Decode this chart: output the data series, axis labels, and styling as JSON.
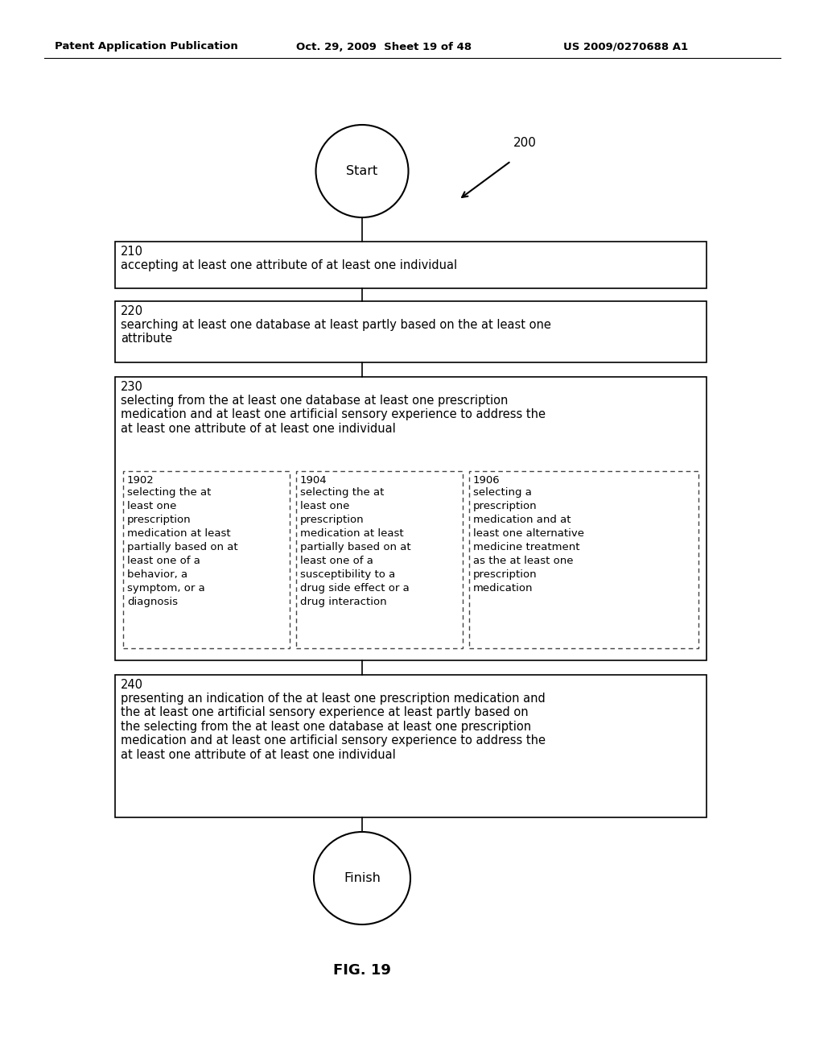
{
  "header_left": "Patent Application Publication",
  "header_mid": "Oct. 29, 2009  Sheet 19 of 48",
  "header_right": "US 2009/0270688 A1",
  "fig_label": "FIG. 19",
  "diagram_label": "200",
  "bg_color": "#ffffff",
  "text_color": "#000000",
  "box_edge_color": "#000000",
  "dashed_edge_color": "#444444",
  "start_label": "Start",
  "finish_label": "Finish",
  "box210_num": "210",
  "box210_text": "accepting at least one attribute of at least one individual",
  "box220_num": "220",
  "box220_text": "searching at least one database at least partly based on the at least one\nattribute",
  "box230_num": "230",
  "box230_text": "selecting from the at least one database at least one prescription\nmedication and at least one artificial sensory experience to address the\nat least one attribute of at least one individual",
  "sub1902_num": "1902",
  "sub1902_text": "selecting the at\nleast one\nprescription\nmedication at least\npartially based on at\nleast one of a\nbehavior, a\nsymptom, or a\ndiagnosis",
  "sub1904_num": "1904",
  "sub1904_text": "selecting the at\nleast one\nprescription\nmedication at least\npartially based on at\nleast one of a\nsusceptibility to a\ndrug side effect or a\ndrug interaction",
  "sub1906_num": "1906",
  "sub1906_text": "selecting a\nprescription\nmedication and at\nleast one alternative\nmedicine treatment\nas the at least one\nprescription\nmedication",
  "box240_num": "240",
  "box240_text": "presenting an indication of the at least one prescription medication and\nthe at least one artificial sensory experience at least partly based on\nthe selecting from the at least one database at least one prescription\nmedication and at least one artificial sensory experience to address the\nat least one attribute of at least one individual"
}
